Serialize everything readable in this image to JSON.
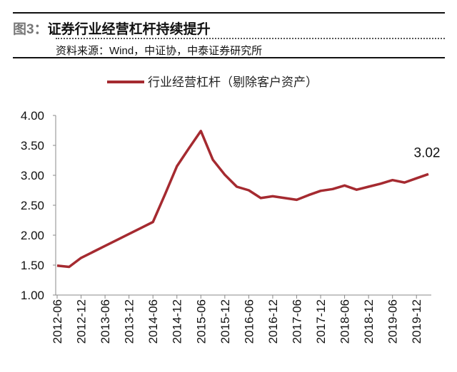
{
  "header": {
    "figure_label": "图3：",
    "title": "证券行业经营杠杆持续提升",
    "source": "资料来源：Wind，中证协，中泰证券研究所"
  },
  "chart_data": {
    "type": "line",
    "title": "",
    "xlabel": "",
    "ylabel": "",
    "ylim": [
      1.0,
      4.0
    ],
    "yticks": [
      "1.00",
      "1.50",
      "2.00",
      "2.50",
      "3.00",
      "3.50",
      "4.00"
    ],
    "xtick_labels": [
      "2012-06",
      "2012-12",
      "2013-06",
      "2013-12",
      "2014-06",
      "2014-12",
      "2015-06",
      "2015-12",
      "2016-06",
      "2016-12",
      "2017-06",
      "2017-12",
      "2018-06",
      "2018-12",
      "2019-06",
      "2019-12"
    ],
    "grid": false,
    "legend_placement": "top-center",
    "color": "#a52a30",
    "series": [
      {
        "name": "行业经营杠杆（剔除客户资产）",
        "x": [
          "2012-06",
          "2012-09",
          "2012-12",
          "2013-03",
          "2013-06",
          "2013-09",
          "2013-12",
          "2014-03",
          "2014-06",
          "2014-09",
          "2014-12",
          "2015-03",
          "2015-06",
          "2015-09",
          "2015-12",
          "2016-03",
          "2016-06",
          "2016-09",
          "2016-12",
          "2017-03",
          "2017-06",
          "2017-09",
          "2017-12",
          "2018-03",
          "2018-06",
          "2018-09",
          "2018-12",
          "2019-03",
          "2019-06",
          "2019-09",
          "2019-12",
          "2020-03"
        ],
        "values": [
          1.49,
          1.47,
          1.62,
          1.72,
          1.82,
          1.92,
          2.02,
          2.12,
          2.22,
          2.68,
          3.15,
          3.45,
          3.74,
          3.26,
          3.01,
          2.81,
          2.75,
          2.62,
          2.65,
          2.62,
          2.59,
          2.67,
          2.74,
          2.77,
          2.83,
          2.76,
          2.81,
          2.86,
          2.92,
          2.88,
          2.95,
          3.02
        ]
      }
    ],
    "annotations": [
      {
        "x": "2020-03",
        "text": "3.02"
      }
    ]
  }
}
